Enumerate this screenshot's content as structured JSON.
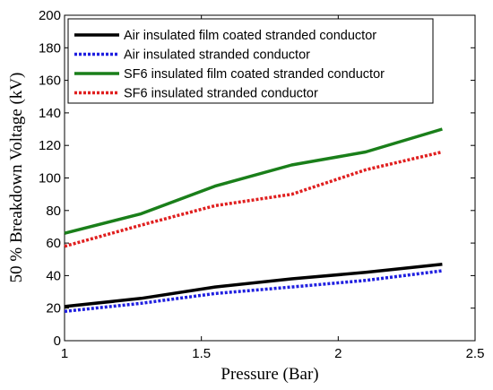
{
  "chart_data": {
    "type": "line",
    "title": "",
    "xlabel": "Pressure (Bar)",
    "ylabel": "50 % Breakdown Voltage (kV)",
    "xlim": [
      1,
      2.5
    ],
    "ylim": [
      0,
      200
    ],
    "xticks": [
      1,
      1.5,
      2,
      2.5
    ],
    "xtick_labels": [
      "1",
      "1.5",
      "2",
      "2.5"
    ],
    "yticks": [
      0,
      20,
      40,
      60,
      80,
      100,
      120,
      140,
      160,
      180,
      200
    ],
    "ytick_labels": [
      "0",
      "20",
      "40",
      "60",
      "80",
      "100",
      "120",
      "140",
      "160",
      "180",
      "200"
    ],
    "grid": false,
    "legend_position": "top-left",
    "series": [
      {
        "name": "Air insulated film coated stranded conductor",
        "color": "#000000",
        "dash": "solid",
        "x": [
          1.0,
          1.28,
          1.55,
          1.83,
          2.1,
          2.38
        ],
        "y": [
          21,
          26,
          33,
          38,
          42,
          47
        ]
      },
      {
        "name": "Air insulated stranded conductor",
        "color": "#1f1fe0",
        "dash": "dotted",
        "x": [
          1.0,
          1.28,
          1.55,
          1.83,
          2.1,
          2.38
        ],
        "y": [
          18,
          23,
          29,
          33,
          37,
          43
        ]
      },
      {
        "name": "SF6 insulated film coated stranded conductor",
        "color": "#1a7f1a",
        "dash": "solid",
        "x": [
          1.0,
          1.28,
          1.55,
          1.83,
          2.1,
          2.38
        ],
        "y": [
          66,
          78,
          95,
          108,
          116,
          130
        ]
      },
      {
        "name": "SF6 insulated stranded conductor",
        "color": "#e01f1f",
        "dash": "dotted",
        "x": [
          1.0,
          1.28,
          1.55,
          1.83,
          2.1,
          2.38
        ],
        "y": [
          58,
          71,
          83,
          90,
          105,
          116
        ]
      }
    ]
  }
}
